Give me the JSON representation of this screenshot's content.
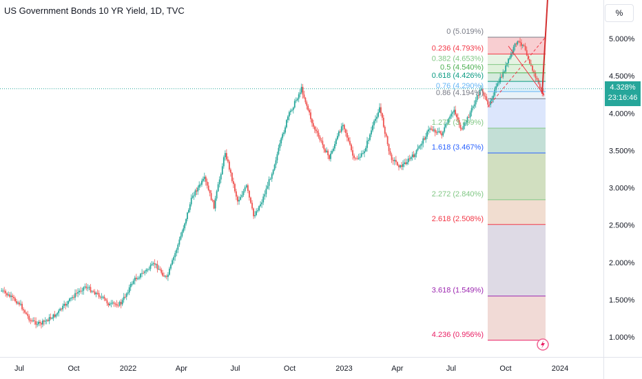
{
  "header": {
    "title": "US Government Bonds 10 YR Yield, 1D, TVC",
    "scale_button": "%"
  },
  "price_tag": {
    "value": "4.328%",
    "countdown": "23:16:46",
    "color": "#26a69a"
  },
  "chart_data": {
    "type": "line",
    "title": "US Government Bonds 10 YR Yield, 1D, TVC",
    "ylabel": "",
    "xlabel": "",
    "ylim": [
      0.75,
      5.35
    ],
    "y_ticks": [
      "5.000%",
      "4.500%",
      "4.000%",
      "3.500%",
      "3.000%",
      "2.500%",
      "2.000%",
      "1.500%",
      "1.000%"
    ],
    "y_tick_values": [
      5.0,
      4.5,
      4.0,
      3.5,
      3.0,
      2.5,
      2.0,
      1.5,
      1.0
    ],
    "x_ticks": [
      "Jul",
      "Oct",
      "2022",
      "Apr",
      "Jul",
      "Oct",
      "2023",
      "Apr",
      "Jul",
      "Oct",
      "2024"
    ],
    "x_tick_dates": [
      "2021-07-01",
      "2021-10-01",
      "2022-01-01",
      "2022-04-01",
      "2022-07-01",
      "2022-10-01",
      "2023-01-01",
      "2023-04-01",
      "2023-07-01",
      "2023-10-01",
      "2024-01-01"
    ],
    "series": [
      {
        "values_date": [
          "2021-06-01",
          "2021-07-01",
          "2021-07-20",
          "2021-08-05",
          "2021-09-01",
          "2021-10-01",
          "2021-10-20",
          "2021-11-15",
          "2021-12-01",
          "2021-12-20",
          "2022-01-10",
          "2022-02-15",
          "2022-03-07",
          "2022-03-31",
          "2022-04-20",
          "2022-05-10",
          "2022-05-26",
          "2022-06-14",
          "2022-07-05",
          "2022-07-20",
          "2022-08-01",
          "2022-08-15",
          "2022-09-01",
          "2022-09-28",
          "2022-10-21",
          "2022-11-10",
          "2022-12-07",
          "2022-12-30",
          "2023-01-18",
          "2023-02-02",
          "2023-03-02",
          "2023-03-20",
          "2023-04-06",
          "2023-05-01",
          "2023-05-26",
          "2023-06-15",
          "2023-07-06",
          "2023-07-19",
          "2023-08-21",
          "2023-09-01",
          "2023-09-29",
          "2023-10-19",
          "2023-11-01",
          "2023-11-13",
          "2023-11-28",
          "2023-12-04"
        ],
        "values": [
          1.62,
          1.45,
          1.22,
          1.17,
          1.3,
          1.55,
          1.68,
          1.55,
          1.43,
          1.45,
          1.76,
          1.98,
          1.78,
          2.35,
          2.9,
          3.12,
          2.75,
          3.48,
          2.82,
          3.02,
          2.62,
          2.82,
          3.2,
          3.95,
          4.33,
          3.82,
          3.4,
          3.87,
          3.37,
          3.45,
          4.08,
          3.42,
          3.28,
          3.45,
          3.8,
          3.72,
          4.05,
          3.76,
          4.34,
          4.1,
          4.58,
          4.95,
          4.92,
          4.62,
          4.35,
          4.24
        ]
      }
    ],
    "fibonacci": {
      "levels": [
        {
          "label": "0 (5.019%)",
          "ratio": 0,
          "price": 5.019,
          "color": "#787b86"
        },
        {
          "label": "0.236 (4.793%)",
          "ratio": 0.236,
          "price": 4.793,
          "color": "#f23645"
        },
        {
          "label": "0.382 (4.653%)",
          "ratio": 0.382,
          "price": 4.653,
          "color": "#81c784"
        },
        {
          "label": "0.5 (4.540%)",
          "ratio": 0.5,
          "price": 4.54,
          "color": "#4caf50"
        },
        {
          "label": "0.618 (4.426%)",
          "ratio": 0.618,
          "price": 4.426,
          "color": "#089981"
        },
        {
          "label": "0.76 (4.290%)",
          "ratio": 0.76,
          "price": 4.29,
          "color": "#64b5f6"
        },
        {
          "label": "0.86 (4.194%)",
          "ratio": 0.86,
          "price": 4.194,
          "color": "#787b86"
        },
        {
          "label": "1.272 (3.799%)",
          "ratio": 1.272,
          "price": 3.799,
          "color": "#81c784"
        },
        {
          "label": "1.618 (3.467%)",
          "ratio": 1.618,
          "price": 3.467,
          "color": "#2962ff"
        },
        {
          "label": "2.272 (2.840%)",
          "ratio": 2.272,
          "price": 2.84,
          "color": "#81c784"
        },
        {
          "label": "2.618 (2.508%)",
          "ratio": 2.618,
          "price": 2.508,
          "color": "#f23645"
        },
        {
          "label": "3.618 (1.549%)",
          "ratio": 3.618,
          "price": 1.549,
          "color": "#9c27b0"
        },
        {
          "label": "4.236 (0.956%)",
          "ratio": 4.236,
          "price": 0.956,
          "color": "#e91e63"
        }
      ],
      "zone_colors": [
        "#f7c6c9",
        "#e2f1de",
        "#d9efd5",
        "#cfe8d8",
        "#d7ecf7",
        "#e5f0f7",
        "#d6e2fb",
        "#b8d9cf",
        "#c9d9b5",
        "#eed7c8",
        "#d8d4e0",
        "#efd3cf"
      ]
    }
  },
  "icons": {
    "alert": "lightning-icon"
  }
}
